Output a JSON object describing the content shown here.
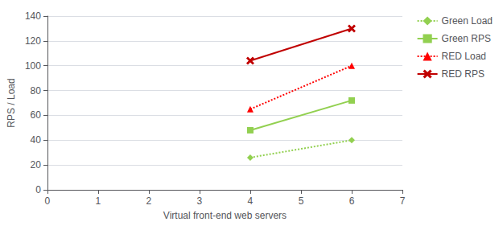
{
  "chart_data": {
    "type": "line",
    "xlabel": "Virtual front-end web servers",
    "ylabel": "RPS / Load",
    "x": [
      4,
      6
    ],
    "xlim": [
      0,
      7
    ],
    "ylim": [
      0,
      140
    ],
    "xticks": [
      0,
      1,
      2,
      3,
      4,
      5,
      6,
      7
    ],
    "yticks": [
      0,
      20,
      40,
      60,
      80,
      100,
      120,
      140
    ],
    "grid": "y",
    "legend": "right",
    "series": [
      {
        "name": "Green Load",
        "color": "#92D050",
        "values": [
          26,
          40
        ],
        "marker": "diamond",
        "line_style": "dotted"
      },
      {
        "name": "Green RPS",
        "color": "#92D050",
        "values": [
          48,
          72
        ],
        "marker": "square",
        "line_style": "solid"
      },
      {
        "name": "RED Load",
        "color": "#FF0000",
        "values": [
          65,
          100
        ],
        "marker": "triangle",
        "line_style": "dotted"
      },
      {
        "name": "RED RPS",
        "color": "#C00000",
        "values": [
          104,
          130
        ],
        "marker": "x",
        "line_style": "solid"
      }
    ]
  }
}
